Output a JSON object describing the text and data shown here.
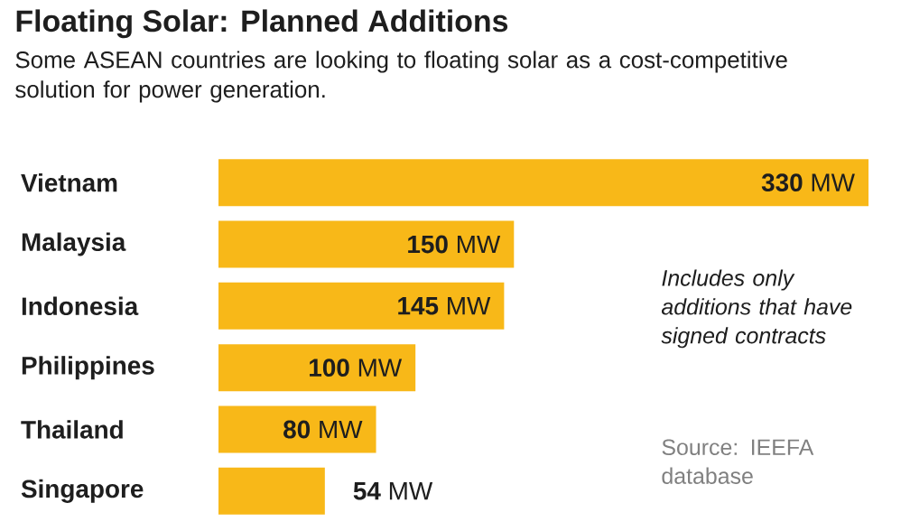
{
  "chart_data": {
    "type": "bar",
    "orientation": "horizontal",
    "title": "Floating Solar: Planned Additions",
    "subtitle": "Some ASEAN countries are looking to floating solar as a cost-competitive solution for power generation.",
    "categories": [
      "Vietnam",
      "Malaysia",
      "Indonesia",
      "Philippines",
      "Thailand",
      "Singapore"
    ],
    "values": [
      330,
      150,
      145,
      100,
      80,
      54
    ],
    "value_labels": [
      "**330** MW",
      "**150** MW",
      "**145** MW",
      "**100** MW",
      "**80** MW",
      "**54** MW"
    ],
    "color": "#f8b818",
    "tick_labels": "y",
    "annotations": [
      "Includes only additions that have signed contracts",
      "Source: IEEFA database"
    ]
  }
}
